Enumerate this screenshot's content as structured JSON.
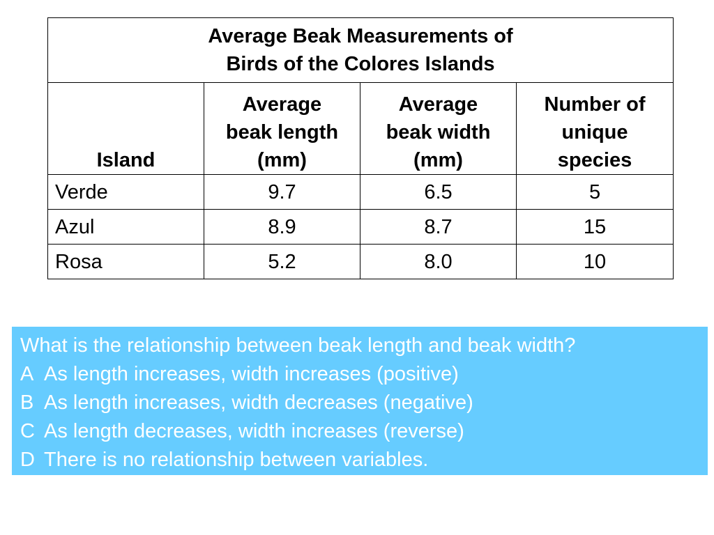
{
  "table": {
    "title_line1": "Average Beak Measurements of",
    "title_line2": "Birds of the Colores Islands",
    "headers": [
      {
        "lines": [
          "Island"
        ]
      },
      {
        "lines": [
          "Average",
          "beak length",
          "(mm)"
        ]
      },
      {
        "lines": [
          "Average",
          "beak width",
          "(mm)"
        ]
      },
      {
        "lines": [
          "Number of",
          "unique",
          "species"
        ]
      }
    ],
    "rows": [
      {
        "island": "Verde",
        "length": "9.7",
        "width": "6.5",
        "species": "5"
      },
      {
        "island": "Azul",
        "length": "8.9",
        "width": "8.7",
        "species": "15"
      },
      {
        "island": "Rosa",
        "length": "5.2",
        "width": "8.0",
        "species": "10"
      }
    ]
  },
  "question": {
    "prompt": "What is the relationship between beak length and beak width?",
    "options": [
      {
        "letter": "A",
        "text": "As length increases, width increases (positive)"
      },
      {
        "letter": "B",
        "text": "As length increases, width decreases (negative)"
      },
      {
        "letter": "C",
        "text": "As length decreases, width increases (reverse)"
      },
      {
        "letter": "D",
        "text": "There is no relationship between variables."
      }
    ]
  },
  "colors": {
    "question_bg": "#66ccff",
    "question_text": "#ffffff",
    "table_border": "#000000"
  }
}
